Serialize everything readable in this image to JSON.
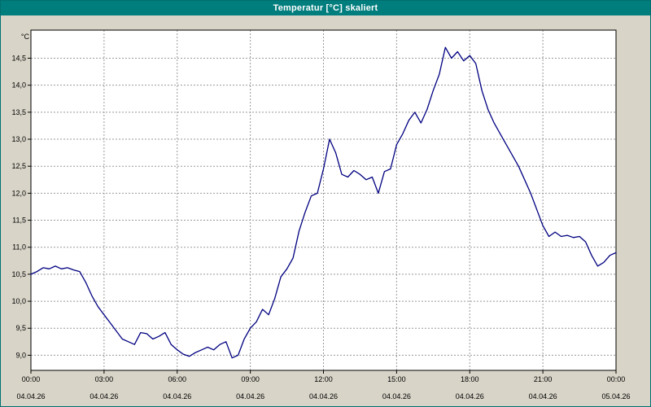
{
  "window": {
    "title": "Temperatur [°C] skaliert"
  },
  "colors": {
    "titlebar_bg": "#007d7d",
    "titlebar_text": "#ffffff",
    "window_bg": "#d8d4c8",
    "plot_bg": "#ffffff",
    "plot_border": "#000000",
    "grid": "#999999",
    "axis_text": "#000000",
    "line": "#000080"
  },
  "chart_data": {
    "type": "line",
    "title": "Temperatur [°C] skaliert",
    "ylabel": "°C",
    "xlabel": "",
    "grid": true,
    "legend": false,
    "xlim": [
      0,
      24
    ],
    "ylim": [
      8.72,
      15.02
    ],
    "y_ticks": [
      {
        "value": 14.5,
        "label": "14,5"
      },
      {
        "value": 14.0,
        "label": "14,0"
      },
      {
        "value": 13.5,
        "label": "13,5"
      },
      {
        "value": 13.0,
        "label": "13,0"
      },
      {
        "value": 12.5,
        "label": "12,5"
      },
      {
        "value": 12.0,
        "label": "12,0"
      },
      {
        "value": 11.5,
        "label": "11,5"
      },
      {
        "value": 11.0,
        "label": "11,0"
      },
      {
        "value": 10.5,
        "label": "10,5"
      },
      {
        "value": 10.0,
        "label": "10,0"
      },
      {
        "value": 9.5,
        "label": "9,5"
      },
      {
        "value": 9.0,
        "label": "9,0"
      }
    ],
    "x_ticks": [
      {
        "hour": 0,
        "time": "00:00",
        "date": "04.04.26"
      },
      {
        "hour": 3,
        "time": "03:00",
        "date": "04.04.26"
      },
      {
        "hour": 6,
        "time": "06:00",
        "date": "04.04.26"
      },
      {
        "hour": 9,
        "time": "09:00",
        "date": "04.04.26"
      },
      {
        "hour": 12,
        "time": "12:00",
        "date": "04.04.26"
      },
      {
        "hour": 15,
        "time": "15:00",
        "date": "04.04.26"
      },
      {
        "hour": 18,
        "time": "18:00",
        "date": "04.04.26"
      },
      {
        "hour": 21,
        "time": "21:00",
        "date": "04.04.26"
      },
      {
        "hour": 24,
        "time": "00:00",
        "date": "05.04.26"
      }
    ],
    "series": [
      {
        "name": "Temperatur [°C]",
        "x": [
          0,
          0.25,
          0.5,
          0.75,
          1,
          1.25,
          1.5,
          1.75,
          2,
          2.25,
          2.5,
          2.75,
          3,
          3.25,
          3.5,
          3.75,
          4,
          4.25,
          4.5,
          4.75,
          5,
          5.25,
          5.5,
          5.75,
          6,
          6.25,
          6.5,
          6.75,
          7,
          7.25,
          7.5,
          7.75,
          8,
          8.25,
          8.5,
          8.75,
          9,
          9.25,
          9.5,
          9.75,
          10,
          10.25,
          10.5,
          10.75,
          11,
          11.25,
          11.5,
          11.75,
          12,
          12.25,
          12.5,
          12.75,
          13,
          13.25,
          13.5,
          13.75,
          14,
          14.25,
          14.5,
          14.75,
          15,
          15.25,
          15.5,
          15.75,
          16,
          16.25,
          16.5,
          16.75,
          17,
          17.25,
          17.5,
          17.75,
          18,
          18.25,
          18.5,
          18.75,
          19,
          19.25,
          19.5,
          19.75,
          20,
          20.25,
          20.5,
          20.75,
          21,
          21.25,
          21.5,
          21.75,
          22,
          22.25,
          22.5,
          22.75,
          23,
          23.25,
          23.5,
          23.75,
          24
        ],
        "values": [
          10.5,
          10.55,
          10.62,
          10.6,
          10.65,
          10.6,
          10.62,
          10.58,
          10.55,
          10.35,
          10.1,
          9.9,
          9.75,
          9.6,
          9.45,
          9.3,
          9.25,
          9.2,
          9.42,
          9.4,
          9.3,
          9.35,
          9.42,
          9.2,
          9.1,
          9.02,
          8.98,
          9.05,
          9.1,
          9.15,
          9.1,
          9.2,
          9.25,
          8.95,
          9.0,
          9.3,
          9.5,
          9.62,
          9.85,
          9.75,
          10.05,
          10.45,
          10.6,
          10.8,
          11.3,
          11.65,
          11.95,
          12.0,
          12.45,
          13.0,
          12.75,
          12.35,
          12.3,
          12.42,
          12.35,
          12.25,
          12.3,
          12.0,
          12.4,
          12.45,
          12.9,
          13.1,
          13.35,
          13.5,
          13.3,
          13.55,
          13.9,
          14.2,
          14.7,
          14.5,
          14.62,
          14.45,
          14.55,
          14.4,
          13.9,
          13.55,
          13.3,
          13.1,
          12.9,
          12.7,
          12.5,
          12.25,
          12.0,
          11.7,
          11.4,
          11.2,
          11.28,
          11.2,
          11.22,
          11.18,
          11.2,
          11.1,
          10.85,
          10.65,
          10.72,
          10.85,
          10.9
        ]
      }
    ]
  }
}
